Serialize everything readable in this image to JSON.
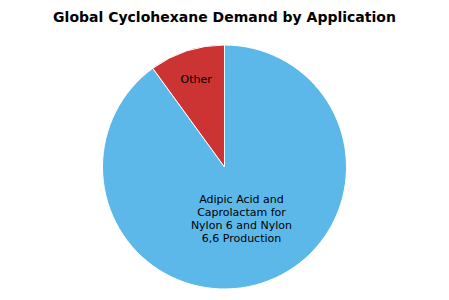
{
  "chart_data": {
    "type": "pie",
    "title": "Global Cyclohexane Demand by Application",
    "categories": [
      "Adipic Acid and\nCaprolactam for\nNylon 6 and Nylon\n6,6 Production",
      "Other"
    ],
    "values": [
      90,
      10
    ],
    "colors": [
      "#5BB8E8",
      "#CC3333"
    ]
  }
}
